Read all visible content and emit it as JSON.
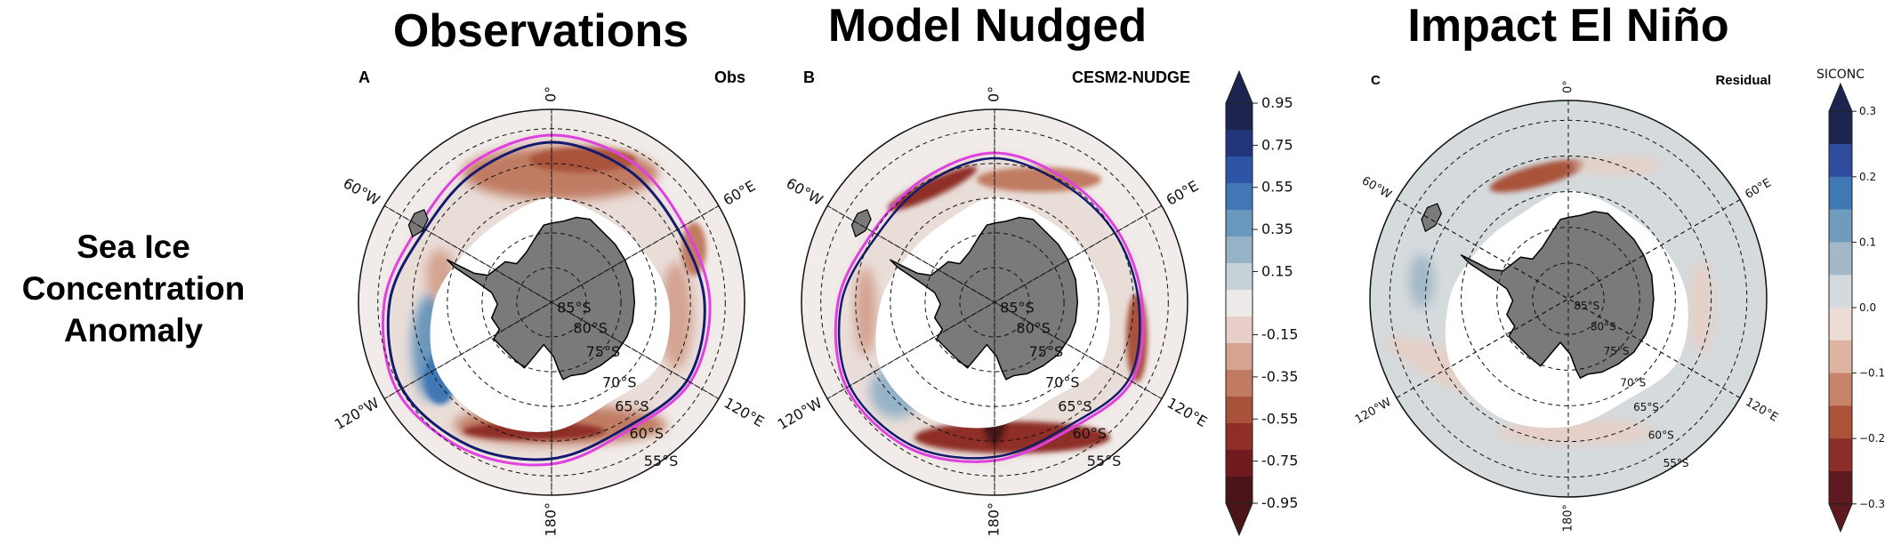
{
  "row_label": [
    "Sea Ice",
    "Concentration",
    "Anomaly"
  ],
  "colors": {
    "ocean_obs": "#f1ecea",
    "ocean_resid": "#d5dadd",
    "land": "#7a7a7a",
    "ice_white": "#ffffff",
    "edge_obs": "#e040e0",
    "edge_model": "#141a6e"
  },
  "chart_data": [
    {
      "type": "heatmap",
      "panel_letter": "A",
      "title": "Observations",
      "label": "Obs",
      "projection": "south-polar-stereographic",
      "lon_labels": [
        "0°",
        "60°E",
        "120°E",
        "180°",
        "120°W",
        "60°W"
      ],
      "lat_labels": [
        "85°S",
        "80°S",
        "75°S",
        "70°S",
        "65°S",
        "60°S",
        "55°S"
      ],
      "colorbar": "shared-with-B"
    },
    {
      "type": "heatmap",
      "panel_letter": "B",
      "title": "Model Nudged",
      "label": "CESM2-NUDGE",
      "projection": "south-polar-stereographic",
      "lon_labels": [
        "0°",
        "60°E",
        "120°E",
        "180°",
        "120°W",
        "60°W"
      ],
      "lat_labels": [
        "85°S",
        "80°S",
        "75°S",
        "70°S",
        "65°S",
        "60°S",
        "55°S"
      ],
      "colorbar": {
        "ticks": [
          "0.95",
          "0.75",
          "0.55",
          "0.35",
          "0.15",
          "-0.15",
          "-0.35",
          "-0.55",
          "-0.75",
          "-0.95"
        ],
        "bins": [
          "#1b2550",
          "#22357a",
          "#2e54a6",
          "#4177b5",
          "#6a97bc",
          "#96b2c7",
          "#c6d1d8",
          "#eeeae9",
          "#e6cfc6",
          "#d4a392",
          "#c07b62",
          "#a9523b",
          "#8e2e25",
          "#6e1a1f",
          "#4a1418"
        ],
        "extend": "both"
      }
    },
    {
      "type": "heatmap",
      "panel_letter": "C",
      "title": "Impact El Niño",
      "label": "Residual",
      "projection": "south-polar-stereographic",
      "lon_labels": [
        "0°",
        "60°E",
        "120°E",
        "180°",
        "120°W",
        "60°W"
      ],
      "lat_labels": [
        "85°S",
        "80°S",
        "75°S",
        "70°S",
        "65°S",
        "60°S",
        "55°S"
      ],
      "colorbar": {
        "title": "SICONC",
        "ticks": [
          "0.3",
          "0.2",
          "0.1",
          "0.0",
          "−0.1",
          "−0.2",
          "−0.3"
        ],
        "bins": [
          "#1b2550",
          "#2f4b9e",
          "#3f79b5",
          "#6f9cbd",
          "#a3b9c8",
          "#d3d9dc",
          "#eddcd5",
          "#dfb3a1",
          "#c88469",
          "#ad5138",
          "#8c2d2a",
          "#5e1a1e"
        ],
        "extend": "both"
      }
    }
  ]
}
